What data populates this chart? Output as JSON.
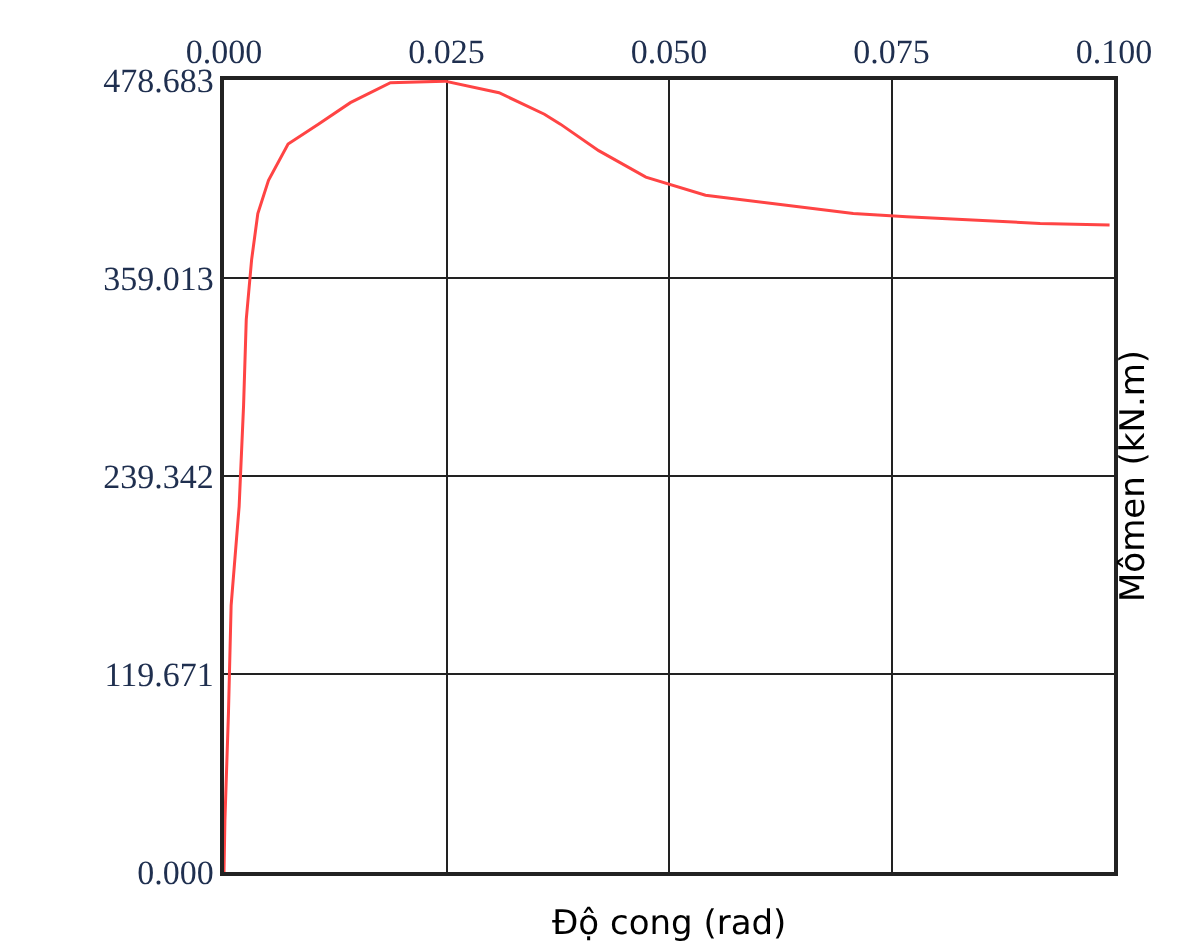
{
  "chart_data": {
    "type": "line",
    "xlabel": "Độ cong (rad)",
    "ylabel": "Mômen (kN.m)",
    "xlim": [
      0,
      0.1
    ],
    "xticks": [
      {
        "value": 0,
        "label": "0.000"
      },
      {
        "value": 0.025,
        "label": "0.025"
      },
      {
        "value": 0.05,
        "label": "0.050"
      },
      {
        "value": 0.075,
        "label": "0.075"
      },
      {
        "value": 0.1,
        "label": "0.100"
      }
    ],
    "ylim": [
      0,
      478.683
    ],
    "yticks": [
      {
        "value": 0,
        "label": "0.000"
      },
      119.671,
      239.342,
      359.013,
      478.683
    ],
    "grid": true,
    "legend": false,
    "marker": "none",
    "line_style": "solid",
    "series": [
      {
        "color": "#ff4444",
        "x": [
          0,
          0.0001,
          0.0005,
          0.0008,
          0.0017,
          0.0022,
          0.0025,
          0.0031,
          0.0038,
          0.005,
          0.0072,
          0.0106,
          0.0142,
          0.0187,
          0.0248,
          0.0309,
          0.036,
          0.0378,
          0.0421,
          0.0474,
          0.0541,
          0.0616,
          0.0707,
          0.0767,
          0.0917,
          0.0995
        ],
        "values": [
          0,
          31,
          96,
          161,
          221,
          282,
          334,
          370,
          398,
          418,
          440,
          452,
          465,
          477,
          478,
          471,
          458,
          452,
          436,
          420,
          409,
          404,
          398,
          396,
          392,
          391
        ]
      }
    ]
  }
}
